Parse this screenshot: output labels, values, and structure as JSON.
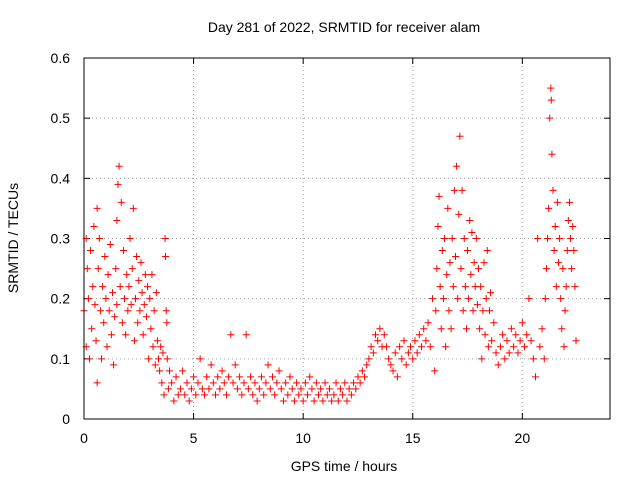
{
  "chart_data": {
    "type": "scatter",
    "title": "Day 281 of 2022, SRMTID for receiver alam",
    "xlabel": "GPS time / hours",
    "ylabel": "SRMTID / TECUs",
    "xlim": [
      0,
      24
    ],
    "ylim": [
      0,
      0.6
    ],
    "xticks": [
      0,
      5,
      10,
      15,
      20
    ],
    "xtick_labels": [
      "0",
      "5",
      "10",
      "15",
      "20"
    ],
    "yticks": [
      0,
      0.1,
      0.2,
      0.3,
      0.4,
      0.5,
      0.6
    ],
    "ytick_labels": [
      "0",
      "0.1",
      "0.2",
      "0.3",
      "0.4",
      "0.5",
      "0.6"
    ],
    "grid": true,
    "marker": "+",
    "colors": {
      "points": "#ff0000",
      "grid": "#a0a0a0",
      "axes": "#000000"
    },
    "series": [
      {
        "name": "SRMTID",
        "points": [
          [
            0.0,
            0.18
          ],
          [
            0.1,
            0.12
          ],
          [
            0.1,
            0.3
          ],
          [
            0.15,
            0.25
          ],
          [
            0.2,
            0.2
          ],
          [
            0.25,
            0.1
          ],
          [
            0.3,
            0.28
          ],
          [
            0.35,
            0.15
          ],
          [
            0.4,
            0.22
          ],
          [
            0.45,
            0.32
          ],
          [
            0.5,
            0.19
          ],
          [
            0.55,
            0.13
          ],
          [
            0.6,
            0.35
          ],
          [
            0.6,
            0.06
          ],
          [
            0.65,
            0.25
          ],
          [
            0.7,
            0.3
          ],
          [
            0.75,
            0.18
          ],
          [
            0.8,
            0.1
          ],
          [
            0.85,
            0.22
          ],
          [
            0.9,
            0.16
          ],
          [
            0.95,
            0.27
          ],
          [
            1.0,
            0.2
          ],
          [
            1.05,
            0.12
          ],
          [
            1.1,
            0.24
          ],
          [
            1.15,
            0.18
          ],
          [
            1.2,
            0.29
          ],
          [
            1.25,
            0.14
          ],
          [
            1.3,
            0.21
          ],
          [
            1.35,
            0.09
          ],
          [
            1.4,
            0.17
          ],
          [
            1.45,
            0.25
          ],
          [
            1.5,
            0.19
          ],
          [
            1.5,
            0.33
          ],
          [
            1.55,
            0.39
          ],
          [
            1.6,
            0.42
          ],
          [
            1.65,
            0.22
          ],
          [
            1.7,
            0.36
          ],
          [
            1.75,
            0.16
          ],
          [
            1.8,
            0.28
          ],
          [
            1.85,
            0.2
          ],
          [
            1.9,
            0.14
          ],
          [
            1.95,
            0.24
          ],
          [
            2.0,
            0.18
          ],
          [
            2.05,
            0.22
          ],
          [
            2.1,
            0.3
          ],
          [
            2.15,
            0.19
          ],
          [
            2.2,
            0.25
          ],
          [
            2.25,
            0.35
          ],
          [
            2.3,
            0.13
          ],
          [
            2.35,
            0.2
          ],
          [
            2.4,
            0.27
          ],
          [
            2.45,
            0.16
          ],
          [
            2.5,
            0.23
          ],
          [
            2.55,
            0.18
          ],
          [
            2.6,
            0.26
          ],
          [
            2.65,
            0.21
          ],
          [
            2.7,
            0.14
          ],
          [
            2.75,
            0.19
          ],
          [
            2.8,
            0.24
          ],
          [
            2.85,
            0.17
          ],
          [
            2.9,
            0.22
          ],
          [
            2.95,
            0.1
          ],
          [
            3.0,
            0.2
          ],
          [
            3.05,
            0.15
          ],
          [
            3.1,
            0.24
          ],
          [
            3.15,
            0.12
          ],
          [
            3.2,
            0.18
          ],
          [
            3.25,
            0.09
          ],
          [
            3.3,
            0.21
          ],
          [
            3.35,
            0.13
          ],
          [
            3.4,
            0.1
          ],
          [
            3.45,
            0.08
          ],
          [
            3.5,
            0.12
          ],
          [
            3.55,
            0.06
          ],
          [
            3.6,
            0.11
          ],
          [
            3.65,
            0.04
          ],
          [
            3.7,
            0.3
          ],
          [
            3.72,
            0.27
          ],
          [
            3.75,
            0.18
          ],
          [
            3.78,
            0.16
          ],
          [
            3.8,
            0.1
          ],
          [
            3.85,
            0.05
          ],
          [
            3.9,
            0.08
          ],
          [
            4.0,
            0.06
          ],
          [
            4.1,
            0.03
          ],
          [
            4.2,
            0.07
          ],
          [
            4.3,
            0.04
          ],
          [
            4.4,
            0.05
          ],
          [
            4.5,
            0.08
          ],
          [
            4.6,
            0.04
          ],
          [
            4.7,
            0.06
          ],
          [
            4.8,
            0.03
          ],
          [
            4.9,
            0.05
          ],
          [
            5.0,
            0.07
          ],
          [
            5.1,
            0.04
          ],
          [
            5.2,
            0.06
          ],
          [
            5.3,
            0.1
          ],
          [
            5.4,
            0.05
          ],
          [
            5.5,
            0.04
          ],
          [
            5.6,
            0.07
          ],
          [
            5.7,
            0.05
          ],
          [
            5.8,
            0.09
          ],
          [
            5.9,
            0.06
          ],
          [
            6.0,
            0.04
          ],
          [
            6.1,
            0.07
          ],
          [
            6.2,
            0.05
          ],
          [
            6.3,
            0.08
          ],
          [
            6.4,
            0.06
          ],
          [
            6.5,
            0.04
          ],
          [
            6.6,
            0.07
          ],
          [
            6.7,
            0.14
          ],
          [
            6.8,
            0.06
          ],
          [
            6.9,
            0.09
          ],
          [
            7.0,
            0.05
          ],
          [
            7.1,
            0.07
          ],
          [
            7.2,
            0.04
          ],
          [
            7.3,
            0.06
          ],
          [
            7.4,
            0.14
          ],
          [
            7.5,
            0.05
          ],
          [
            7.6,
            0.07
          ],
          [
            7.7,
            0.04
          ],
          [
            7.8,
            0.06
          ],
          [
            7.9,
            0.03
          ],
          [
            8.0,
            0.05
          ],
          [
            8.1,
            0.07
          ],
          [
            8.2,
            0.04
          ],
          [
            8.3,
            0.06
          ],
          [
            8.4,
            0.09
          ],
          [
            8.5,
            0.05
          ],
          [
            8.6,
            0.07
          ],
          [
            8.7,
            0.04
          ],
          [
            8.8,
            0.06
          ],
          [
            8.9,
            0.08
          ],
          [
            9.0,
            0.05
          ],
          [
            9.1,
            0.03
          ],
          [
            9.2,
            0.06
          ],
          [
            9.3,
            0.04
          ],
          [
            9.4,
            0.07
          ],
          [
            9.5,
            0.05
          ],
          [
            9.6,
            0.03
          ],
          [
            9.7,
            0.06
          ],
          [
            9.8,
            0.04
          ],
          [
            9.9,
            0.05
          ],
          [
            10.0,
            0.03
          ],
          [
            10.1,
            0.06
          ],
          [
            10.2,
            0.04
          ],
          [
            10.3,
            0.07
          ],
          [
            10.4,
            0.05
          ],
          [
            10.5,
            0.03
          ],
          [
            10.6,
            0.06
          ],
          [
            10.7,
            0.04
          ],
          [
            10.8,
            0.05
          ],
          [
            10.9,
            0.03
          ],
          [
            11.0,
            0.06
          ],
          [
            11.1,
            0.04
          ],
          [
            11.2,
            0.05
          ],
          [
            11.3,
            0.03
          ],
          [
            11.4,
            0.04
          ],
          [
            11.5,
            0.06
          ],
          [
            11.6,
            0.03
          ],
          [
            11.7,
            0.05
          ],
          [
            11.8,
            0.04
          ],
          [
            11.9,
            0.06
          ],
          [
            12.0,
            0.03
          ],
          [
            12.1,
            0.05
          ],
          [
            12.2,
            0.04
          ],
          [
            12.3,
            0.06
          ],
          [
            12.4,
            0.05
          ],
          [
            12.5,
            0.07
          ],
          [
            12.6,
            0.06
          ],
          [
            12.7,
            0.08
          ],
          [
            12.8,
            0.07
          ],
          [
            12.9,
            0.09
          ],
          [
            13.0,
            0.1
          ],
          [
            13.1,
            0.12
          ],
          [
            13.2,
            0.11
          ],
          [
            13.3,
            0.14
          ],
          [
            13.4,
            0.13
          ],
          [
            13.5,
            0.15
          ],
          [
            13.6,
            0.12
          ],
          [
            13.7,
            0.14
          ],
          [
            13.8,
            0.12
          ],
          [
            13.9,
            0.1
          ],
          [
            14.0,
            0.09
          ],
          [
            14.1,
            0.08
          ],
          [
            14.2,
            0.11
          ],
          [
            14.3,
            0.07
          ],
          [
            14.4,
            0.12
          ],
          [
            14.5,
            0.1
          ],
          [
            14.6,
            0.13
          ],
          [
            14.7,
            0.09
          ],
          [
            14.8,
            0.11
          ],
          [
            14.9,
            0.12
          ],
          [
            15.0,
            0.1
          ],
          [
            15.1,
            0.13
          ],
          [
            15.2,
            0.11
          ],
          [
            15.3,
            0.14
          ],
          [
            15.4,
            0.12
          ],
          [
            15.5,
            0.15
          ],
          [
            15.6,
            0.13
          ],
          [
            15.7,
            0.16
          ],
          [
            15.8,
            0.12
          ],
          [
            15.9,
            0.2
          ],
          [
            16.0,
            0.08
          ],
          [
            16.05,
            0.18
          ],
          [
            16.1,
            0.25
          ],
          [
            16.15,
            0.32
          ],
          [
            16.2,
            0.37
          ],
          [
            16.25,
            0.22
          ],
          [
            16.3,
            0.15
          ],
          [
            16.35,
            0.28
          ],
          [
            16.4,
            0.2
          ],
          [
            16.45,
            0.3
          ],
          [
            16.5,
            0.12
          ],
          [
            16.55,
            0.24
          ],
          [
            16.6,
            0.35
          ],
          [
            16.65,
            0.18
          ],
          [
            16.7,
            0.26
          ],
          [
            16.75,
            0.15
          ],
          [
            16.8,
            0.3
          ],
          [
            16.85,
            0.22
          ],
          [
            16.9,
            0.38
          ],
          [
            16.95,
            0.27
          ],
          [
            17.0,
            0.42
          ],
          [
            17.05,
            0.2
          ],
          [
            17.1,
            0.34
          ],
          [
            17.15,
            0.47
          ],
          [
            17.2,
            0.25
          ],
          [
            17.25,
            0.38
          ],
          [
            17.3,
            0.18
          ],
          [
            17.35,
            0.3
          ],
          [
            17.4,
            0.22
          ],
          [
            17.45,
            0.15
          ],
          [
            17.5,
            0.28
          ],
          [
            17.55,
            0.2
          ],
          [
            17.6,
            0.33
          ],
          [
            17.65,
            0.24
          ],
          [
            17.7,
            0.31
          ],
          [
            17.75,
            0.18
          ],
          [
            17.8,
            0.26
          ],
          [
            17.85,
            0.22
          ],
          [
            17.9,
            0.3
          ],
          [
            17.95,
            0.19
          ],
          [
            18.0,
            0.25
          ],
          [
            18.05,
            0.15
          ],
          [
            18.1,
            0.22
          ],
          [
            18.15,
            0.1
          ],
          [
            18.2,
            0.18
          ],
          [
            18.25,
            0.26
          ],
          [
            18.3,
            0.14
          ],
          [
            18.35,
            0.2
          ],
          [
            18.4,
            0.28
          ],
          [
            18.45,
            0.12
          ],
          [
            18.5,
            0.18
          ],
          [
            18.55,
            0.21
          ],
          [
            18.6,
            0.13
          ],
          [
            18.7,
            0.16
          ],
          [
            18.8,
            0.11
          ],
          [
            18.9,
            0.09
          ],
          [
            19.0,
            0.12
          ],
          [
            19.1,
            0.14
          ],
          [
            19.2,
            0.1
          ],
          [
            19.3,
            0.13
          ],
          [
            19.4,
            0.11
          ],
          [
            19.5,
            0.15
          ],
          [
            19.6,
            0.12
          ],
          [
            19.7,
            0.14
          ],
          [
            19.8,
            0.11
          ],
          [
            19.9,
            0.13
          ],
          [
            20.0,
            0.16
          ],
          [
            20.1,
            0.12
          ],
          [
            20.2,
            0.14
          ],
          [
            20.3,
            0.2
          ],
          [
            20.4,
            0.13
          ],
          [
            20.5,
            0.1
          ],
          [
            20.6,
            0.07
          ],
          [
            20.7,
            0.3
          ],
          [
            20.8,
            0.12
          ],
          [
            20.9,
            0.15
          ],
          [
            21.0,
            0.1
          ],
          [
            21.05,
            0.2
          ],
          [
            21.1,
            0.25
          ],
          [
            21.15,
            0.3
          ],
          [
            21.2,
            0.35
          ],
          [
            21.25,
            0.5
          ],
          [
            21.3,
            0.55
          ],
          [
            21.32,
            0.53
          ],
          [
            21.35,
            0.44
          ],
          [
            21.4,
            0.38
          ],
          [
            21.45,
            0.28
          ],
          [
            21.5,
            0.32
          ],
          [
            21.55,
            0.22
          ],
          [
            21.6,
            0.36
          ],
          [
            21.65,
            0.26
          ],
          [
            21.7,
            0.3
          ],
          [
            21.75,
            0.2
          ],
          [
            21.8,
            0.15
          ],
          [
            21.85,
            0.25
          ],
          [
            21.9,
            0.12
          ],
          [
            21.95,
            0.18
          ],
          [
            22.0,
            0.22
          ],
          [
            22.05,
            0.28
          ],
          [
            22.1,
            0.33
          ],
          [
            22.15,
            0.36
          ],
          [
            22.2,
            0.3
          ],
          [
            22.25,
            0.25
          ],
          [
            22.3,
            0.32
          ],
          [
            22.35,
            0.28
          ],
          [
            22.4,
            0.22
          ],
          [
            22.45,
            0.13
          ]
        ]
      }
    ]
  }
}
